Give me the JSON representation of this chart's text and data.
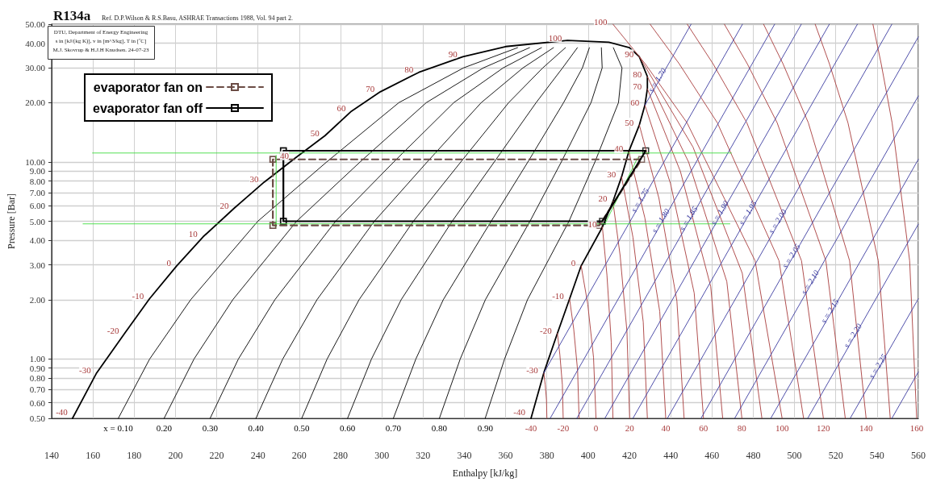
{
  "chart_data": {
    "type": "line",
    "title": "R134a",
    "subtitle": "Ref. D.P.Wilson & R.S.Basu, ASHRAE Transactions 1988, Vol. 94 part 2.",
    "xlabel": "Enthalpy [kJ/kg]",
    "ylabel": "Pressure [Bar]",
    "xlim": [
      140,
      560
    ],
    "xticks": [
      140,
      160,
      180,
      200,
      220,
      240,
      260,
      280,
      300,
      320,
      340,
      360,
      380,
      400,
      420,
      440,
      460,
      480,
      500,
      520,
      540,
      560
    ],
    "ylim": [
      0.5,
      50
    ],
    "yticks": [
      {
        "value": 0.5,
        "label": "0.50"
      },
      {
        "value": 0.6,
        "label": "0.60"
      },
      {
        "value": 0.7,
        "label": "0.70"
      },
      {
        "value": 0.8,
        "label": "0.80"
      },
      {
        "value": 0.9,
        "label": "0.90"
      },
      {
        "value": 1,
        "label": "1.00"
      },
      {
        "value": 2,
        "label": "2.00"
      },
      {
        "value": 3,
        "label": "3.00"
      },
      {
        "value": 4,
        "label": "4.00"
      },
      {
        "value": 5,
        "label": "5.00"
      },
      {
        "value": 6,
        "label": "6.00"
      },
      {
        "value": 7,
        "label": "7.00"
      },
      {
        "value": 8,
        "label": "8.00"
      },
      {
        "value": 9,
        "label": "9.00"
      },
      {
        "value": 10,
        "label": "10.00"
      },
      {
        "value": 20,
        "label": "20.00"
      },
      {
        "value": 30,
        "label": "30.00"
      },
      {
        "value": 40,
        "label": "40.00"
      },
      {
        "value": 50,
        "label": "50.00"
      }
    ],
    "log": true,
    "grid": true,
    "legend": "top left",
    "marker": "none",
    "line_style": "solid",
    "series": [
      {
        "color": "#000000",
        "x": [
          150.1,
          161.8,
          175.4,
          187.4,
          200.6,
          213.4,
          228.6,
          243,
          257.7,
          272.5,
          285.3,
          299.3,
          318,
          339.3,
          360,
          390,
          410,
          420,
          424.8,
          428.7,
          428.7,
          427.5,
          424.8,
          419.7,
          416.2,
          412,
          406.9,
          396.6,
          391,
          385.1,
          378.5,
          372.3
        ],
        "values": [
          0.5,
          0.85,
          1.35,
          2.02,
          2.97,
          4.17,
          5.84,
          7.9,
          10.4,
          13.6,
          18.1,
          22.7,
          28.5,
          34.2,
          38.5,
          41.4,
          40.5,
          38,
          34.2,
          27.1,
          23.5,
          19.4,
          15.4,
          11.3,
          8.4,
          6.3,
          4.67,
          2.97,
          2.02,
          1.35,
          0.85,
          0.5
        ]
      },
      {
        "name": "x = 0.10",
        "color": "#000000",
        "x": [
          172.3,
          187.5,
          207.4,
          239.9,
          273.3,
          308.3,
          339.6,
          365.8
        ],
        "values": [
          0.5,
          1,
          2,
          5,
          10,
          20,
          30,
          38
        ]
      },
      {
        "name": "0.20",
        "color": "#000000",
        "x": [
          194.5,
          209,
          227.8,
          258.7,
          289.5,
          321.6,
          349.2,
          371.6
        ],
        "values": [
          0.5,
          1,
          2,
          5,
          10,
          20,
          30,
          38
        ]
      },
      {
        "name": "0.30",
        "color": "#000000",
        "x": [
          216.8,
          230.5,
          248.2,
          277.6,
          305.8,
          334.9,
          358.8,
          377.4
        ],
        "values": [
          0.5,
          1,
          2,
          5,
          10,
          20,
          30,
          38
        ]
      },
      {
        "name": "0.40",
        "color": "#000000",
        "x": [
          239,
          252,
          268.6,
          296.4,
          322,
          348.2,
          368.4,
          383.2
        ],
        "values": [
          0.5,
          1,
          2,
          5,
          10,
          20,
          30,
          38
        ]
      },
      {
        "name": "0.50",
        "color": "#000000",
        "x": [
          261.2,
          273.5,
          289,
          315.3,
          338.3,
          361.5,
          378,
          389
        ],
        "values": [
          0.5,
          1,
          2,
          5,
          10,
          20,
          30,
          38
        ]
      },
      {
        "name": "0.60",
        "color": "#000000",
        "x": [
          283.4,
          295,
          309.4,
          334.1,
          354.5,
          374.8,
          387.6,
          394.8
        ],
        "values": [
          0.5,
          1,
          2,
          5,
          10,
          20,
          30,
          38
        ]
      },
      {
        "name": "0.70",
        "color": "#000000",
        "x": [
          305.6,
          316.5,
          329.8,
          353,
          370.8,
          388.1,
          397.2,
          400.6
        ],
        "values": [
          0.5,
          1,
          2,
          5,
          10,
          20,
          30,
          38
        ]
      },
      {
        "name": "0.80",
        "color": "#000000",
        "x": [
          327.9,
          338,
          350.2,
          371.8,
          387,
          401.4,
          406.8,
          406.4
        ],
        "values": [
          0.5,
          1,
          2,
          5,
          10,
          20,
          30,
          38
        ]
      },
      {
        "name": "0.90",
        "color": "#000000",
        "x": [
          350.1,
          359.5,
          370.6,
          390.7,
          403.3,
          414.7,
          416.4,
          412.2
        ],
        "values": [
          0.5,
          1,
          2,
          5,
          10,
          20,
          30,
          38
        ]
      },
      {
        "color": "#a83c3c",
        "x": [
          378.5,
          379.2,
          379.8,
          380
        ],
        "values": [
          0.85,
          0.74,
          0.62,
          0.5
        ]
      },
      {
        "color": "#a83c3c",
        "x": [
          385.1,
          386.3,
          387.5,
          387.9
        ],
        "values": [
          1.35,
          1.05,
          0.74,
          0.5
        ]
      },
      {
        "color": "#a83c3c",
        "x": [
          391,
          393,
          394.9,
          395.6
        ],
        "values": [
          2.02,
          1.42,
          0.87,
          0.5
        ]
      },
      {
        "color": "#a83c3c",
        "x": [
          396.6,
          399.8,
          402.6,
          403.8
        ],
        "values": [
          2.97,
          1.9,
          1.02,
          0.5
        ]
      },
      {
        "color": "#a83c3c",
        "x": [
          406.9,
          409.1,
          411.2,
          412
        ],
        "values": [
          4.67,
          2.67,
          1.22,
          0.5
        ]
      },
      {
        "color": "#a83c3c",
        "x": [
          412,
          415.5,
          418.8,
          420.1
        ],
        "values": [
          6.3,
          3.35,
          1.38,
          0.5
        ]
      },
      {
        "color": "#a83c3c",
        "x": [
          416.2,
          421.7,
          426.7,
          428.7
        ],
        "values": [
          8.4,
          4.15,
          1.54,
          0.5
        ]
      },
      {
        "color": "#a83c3c",
        "x": [
          419.7,
          427.5,
          434.7,
          437.6
        ],
        "values": [
          11.3,
          5.19,
          1.74,
          0.5
        ]
      },
      {
        "color": "#a83c3c",
        "x": [
          424.8,
          434.3,
          443,
          446.5
        ],
        "values": [
          15.4,
          6.54,
          1.97,
          0.5
        ]
      },
      {
        "color": "#a83c3c",
        "x": [
          427.5,
          439.9,
          451.4,
          455.9
        ],
        "values": [
          19.4,
          7.77,
          2.16,
          0.5
        ]
      },
      {
        "color": "#a83c3c",
        "x": [
          428.7,
          444.7,
          459.4,
          465.2
        ],
        "values": [
          23.5,
          8.95,
          2.33,
          0.5
        ]
      },
      {
        "color": "#a83c3c",
        "x": [
          428.7,
          448.7,
          467.2,
          474.5
        ],
        "values": [
          27.1,
          9.97,
          2.47,
          0.5
        ]
      },
      {
        "color": "#a83c3c",
        "x": [
          424.8,
          450.8,
          474.7,
          484.2
        ],
        "values": [
          34.2,
          11.9,
          2.72,
          0.5
        ]
      },
      {
        "color": "#a83c3c",
        "x": [
          412,
          427.6,
          447.9,
          480.9,
          494
        ],
        "values": [
          50,
          31.5,
          15.8,
          3.15,
          0.5
        ]
      },
      {
        "color": "#a83c3c",
        "x": [
          430,
          444.1,
          462.6,
          492.5,
          504.4
        ],
        "values": [
          50,
          31.5,
          15.8,
          3.15,
          0.5
        ]
      },
      {
        "color": "#a83c3c",
        "x": [
          448,
          460.5,
          476.9,
          503.4,
          514
        ],
        "values": [
          50,
          31.5,
          15.8,
          3.15,
          0.5
        ]
      },
      {
        "color": "#a83c3c",
        "x": [
          466,
          477.1,
          491.6,
          515.2,
          524.6
        ],
        "values": [
          50,
          31.5,
          15.8,
          3.15,
          0.5
        ]
      },
      {
        "color": "#a83c3c",
        "x": [
          485,
          494.4,
          506.7,
          526.7,
          534.7
        ],
        "values": [
          50,
          31.5,
          15.8,
          3.15,
          0.5
        ]
      },
      {
        "color": "#a83c3c",
        "x": [
          510,
          516.9,
          525.9,
          540.6,
          546.4
        ],
        "values": [
          50,
          31.5,
          15.8,
          3.15,
          0.5
        ]
      },
      {
        "color": "#a83c3c",
        "x": [
          538,
          542,
          547.3,
          555.8,
          559.2
        ],
        "values": [
          50,
          31.5,
          15.8,
          3.15,
          0.5
        ]
      },
      {
        "name": "s = 1.70",
        "color": "#3c3ca0",
        "x": [
          427.5,
          437.6,
          449.9
        ],
        "values": [
          19.4,
          29.7,
          50
        ]
      },
      {
        "name": "s = 1.75",
        "color": "#3c3ca0",
        "x": [
          378.5,
          429.3,
          474.8
        ],
        "values": [
          0.85,
          7.3,
          50
        ]
      },
      {
        "name": "s = 1.80",
        "color": "#3c3ca0",
        "x": [
          381.6,
          439.3,
          490.4
        ],
        "values": [
          0.5,
          5.74,
          50
        ]
      },
      {
        "name": "s = 1.85",
        "color": "#3c3ca0",
        "x": [
          394.5,
          452.8,
          503.3
        ],
        "values": [
          0.5,
          5.9,
          50
        ]
      },
      {
        "name": "s = 1.90",
        "color": "#3c3ca0",
        "x": [
          408.1,
          467.9,
          516.9
        ],
        "values": [
          0.5,
          6.3,
          50
        ]
      },
      {
        "name": "s = 1.95",
        "color": "#3c3ca0",
        "x": [
          421.7,
          481.5,
          530.5
        ],
        "values": [
          0.5,
          6.3,
          50
        ]
      },
      {
        "name": "s = 2.00",
        "color": "#3c3ca0",
        "x": [
          438.4,
          495.9,
          547.2
        ],
        "values": [
          0.5,
          5.7,
          50
        ]
      },
      {
        "name": "s = 2.05",
        "color": "#3c3ca0",
        "x": [
          454.7,
          502.6,
          560
        ],
        "values": [
          0.5,
          3.8,
          43.1
        ]
      },
      {
        "name": "s = 2.10",
        "color": "#3c3ca0",
        "x": [
          471,
          511.7,
          560
        ],
        "values": [
          0.5,
          2.8,
          21.6
        ]
      },
      {
        "name": "s = 2.15",
        "color": "#3c3ca0",
        "x": [
          488.5,
          521.3,
          560
        ],
        "values": [
          0.5,
          2,
          10.3
        ]
      },
      {
        "name": "s = 2.20",
        "color": "#3c3ca0",
        "x": [
          506.4,
          532.4,
          560
        ],
        "values": [
          0.5,
          1.5,
          4.83
        ]
      },
      {
        "name": "s = 2.25",
        "color": "#3c3ca0",
        "x": [
          527,
          544.5,
          560
        ],
        "values": [
          0.5,
          1.05,
          2.02
        ]
      },
      {
        "color": "#3c3ca0",
        "x": [
          547.2,
          560
        ],
        "values": [
          0.5,
          0.86
        ]
      },
      {
        "color": "#3fdc3f",
        "x": [
          159.8,
          469.4
        ],
        "values": [
          11.1,
          11.1
        ]
      },
      {
        "color": "#3fdc3f",
        "x": [
          155.2,
          468.7
        ],
        "values": [
          4.85,
          4.85
        ]
      },
      {
        "color": "#3fdc3f",
        "x": [
          248.8,
          248.8
        ],
        "values": [
          4.7,
          10.8
        ]
      },
      {
        "color": "#3fdc3f",
        "x": [
          408.5,
          424
        ],
        "values": [
          4.94,
          10.5
        ]
      },
      {
        "name": "evaporator fan on",
        "color": "#6b4c45",
        "line_style": "dashed",
        "marker": "square",
        "x": [
          247.2,
          247.2,
          405.4,
          425.9,
          247.2,
          247.2
        ],
        "values": [
          10.3,
          4.76,
          4.76,
          10.3,
          10.3,
          4.76
        ]
      },
      {
        "name": "evaporator fan off",
        "color": "#000000",
        "line_style": "solid",
        "marker": "square",
        "x": [
          252.3,
          252.3,
          406.9,
          427.9,
          252.3,
          252.3
        ],
        "values": [
          11.4,
          5,
          5,
          11.4,
          11.4,
          5
        ]
      }
    ],
    "annotations": [
      "DTU, Department of Energy Engineering",
      "s in [kJ/(kg K)], v in [m^3/kg], T in [ºC]",
      "M.J. Skovrup & H.J.H Knudsen. 24-07-23",
      {
        "text": "-40",
        "x": 150.5,
        "y": 0.52
      },
      {
        "text": "-30",
        "x": 161.8,
        "y": 0.85
      },
      {
        "text": "-20",
        "x": 175.4,
        "y": 1.35
      },
      {
        "text": "-10",
        "x": 187.4,
        "y": 2.02
      },
      {
        "text": "0",
        "x": 200.6,
        "y": 2.97
      },
      {
        "text": "10",
        "x": 213.4,
        "y": 4.17
      },
      {
        "text": "20",
        "x": 228.6,
        "y": 5.84
      },
      {
        "text": "30",
        "x": 243,
        "y": 7.9
      },
      {
        "text": "40",
        "x": 257.7,
        "y": 10.4
      },
      {
        "text": "50",
        "x": 272.5,
        "y": 13.6
      },
      {
        "text": "60",
        "x": 285.3,
        "y": 18.1
      },
      {
        "text": "70",
        "x": 299.3,
        "y": 22.7
      },
      {
        "text": "80",
        "x": 318,
        "y": 28.5
      },
      {
        "text": "90",
        "x": 339.3,
        "y": 34.2
      },
      {
        "text": "100",
        "x": 390,
        "y": 41.4
      },
      {
        "text": "-40",
        "x": 372.3,
        "y": 0.52
      },
      {
        "text": "-30",
        "x": 378.5,
        "y": 0.85
      },
      {
        "text": "-20",
        "x": 385.1,
        "y": 1.35
      },
      {
        "text": "-10",
        "x": 391,
        "y": 2.02
      },
      {
        "text": "0",
        "x": 396.6,
        "y": 2.97
      },
      {
        "text": "10",
        "x": 406.9,
        "y": 4.67
      },
      {
        "text": "20",
        "x": 412,
        "y": 6.3
      },
      {
        "text": "30",
        "x": 416.2,
        "y": 8.4
      },
      {
        "text": "40",
        "x": 419.7,
        "y": 11.3
      },
      {
        "text": "50",
        "x": 424.8,
        "y": 15.4
      },
      {
        "text": "60",
        "x": 427.5,
        "y": 19.4
      },
      {
        "text": "70",
        "x": 428.7,
        "y": 23.5
      },
      {
        "text": "80",
        "x": 428.7,
        "y": 27.1
      },
      {
        "text": "90",
        "x": 424.8,
        "y": 34.2
      },
      {
        "text": "100",
        "x": 412,
        "y": 50
      },
      {
        "text": "-40",
        "x": 372.3,
        "y": 0.5
      },
      {
        "text": "-20",
        "x": 387.9,
        "y": 0.5
      },
      {
        "text": "0",
        "x": 403.8,
        "y": 0.5
      },
      {
        "text": "20",
        "x": 420.1,
        "y": 0.5
      },
      {
        "text": "40",
        "x": 437.6,
        "y": 0.5
      },
      {
        "text": "60",
        "x": 455.9,
        "y": 0.5
      },
      {
        "text": "80",
        "x": 474.5,
        "y": 0.5
      },
      {
        "text": "100",
        "x": 494,
        "y": 0.5
      },
      {
        "text": "120",
        "x": 514,
        "y": 0.5
      },
      {
        "text": "140",
        "x": 534.7,
        "y": 0.5
      },
      {
        "text": "160",
        "x": 559.2,
        "y": 0.5
      }
    ]
  }
}
